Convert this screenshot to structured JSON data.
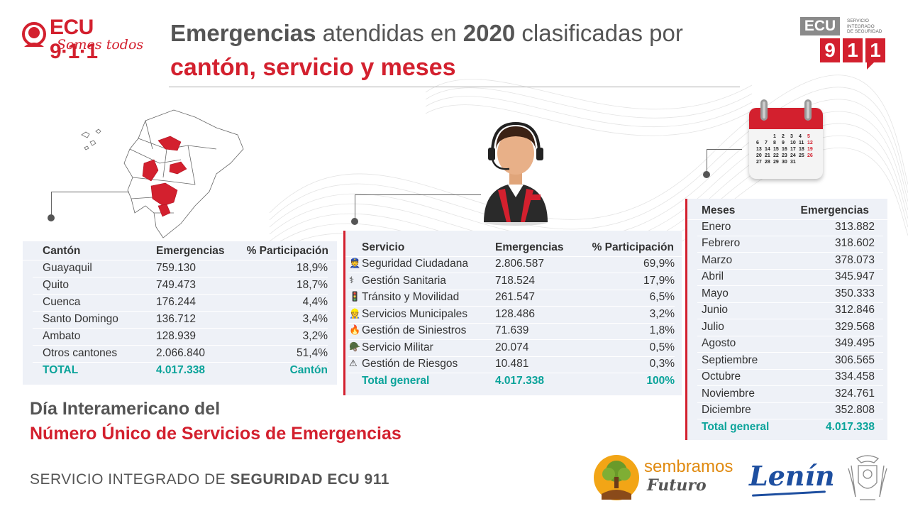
{
  "header": {
    "logo_brand": "ECU 9·1·1",
    "logo_slogan": "Somos todos",
    "title_part1": "Emergencias",
    "title_part2": " atendidas en ",
    "title_part3": "2020",
    "title_part4": " clasificadas por",
    "subtitle": "cantón, servicio y meses",
    "right_logo_top": "ECU",
    "right_logo_lines": [
      "SERVICIO",
      "INTEGRADO",
      "DE SEGURIDAD"
    ],
    "right_logo_digits": [
      "9",
      "1",
      "1"
    ]
  },
  "canton": {
    "headers": [
      "Cantón",
      "Emergencias",
      "% Participación"
    ],
    "rows": [
      [
        "Guayaquil",
        "759.130",
        "18,9%"
      ],
      [
        "Quito",
        "749.473",
        "18,7%"
      ],
      [
        "Cuenca",
        "176.244",
        "4,4%"
      ],
      [
        "Santo Domingo",
        "136.712",
        "3,4%"
      ],
      [
        "Ambato",
        "128.939",
        "3,2%"
      ],
      [
        "Otros cantones",
        "2.066.840",
        "51,4%"
      ]
    ],
    "total": [
      "TOTAL",
      "4.017.338",
      "Cantón"
    ]
  },
  "servicio": {
    "headers": [
      "Servicio",
      "Emergencias",
      "% Participación"
    ],
    "rows": [
      [
        "Seguridad Ciudadana",
        "2.806.587",
        "69,9%"
      ],
      [
        "Gestión Sanitaria",
        "718.524",
        "17,9%"
      ],
      [
        "Tránsito y Movilidad",
        "261.547",
        "6,5%"
      ],
      [
        "Servicios Municipales",
        "128.486",
        "3,2%"
      ],
      [
        "Gestión de Siniestros",
        "71.639",
        "1,8%"
      ],
      [
        "Servicio Militar",
        "20.074",
        "0,5%"
      ],
      [
        "Gestión de Riesgos",
        "10.481",
        "0,3%"
      ]
    ],
    "icons": [
      "police-icon",
      "medic-icon",
      "traffic-officer-icon",
      "municipal-worker-icon",
      "firefighter-icon",
      "soldier-icon",
      "risk-worker-icon"
    ],
    "total": [
      "Total general",
      "4.017.338",
      "100%"
    ]
  },
  "meses": {
    "headers": [
      "Meses",
      "Emergencias"
    ],
    "rows": [
      [
        "Enero",
        "313.882"
      ],
      [
        "Febrero",
        "318.602"
      ],
      [
        "Marzo",
        "378.073"
      ],
      [
        "Abril",
        "345.947"
      ],
      [
        "Mayo",
        "350.333"
      ],
      [
        "Junio",
        "312.846"
      ],
      [
        "Julio",
        "329.568"
      ],
      [
        "Agosto",
        "349.495"
      ],
      [
        "Septiembre",
        "306.565"
      ],
      [
        "Octubre",
        "334.458"
      ],
      [
        "Noviembre",
        "324.761"
      ],
      [
        "Diciembre",
        "352.808"
      ]
    ],
    "total": [
      "Total general",
      "4.017.338"
    ]
  },
  "calendar": {
    "rows": [
      [
        "",
        "",
        "1",
        "2",
        "3",
        "4",
        "5"
      ],
      [
        "6",
        "7",
        "8",
        "9",
        "10",
        "11",
        "12"
      ],
      [
        "13",
        "14",
        "15",
        "16",
        "17",
        "18",
        "19"
      ],
      [
        "20",
        "21",
        "22",
        "23",
        "24",
        "25",
        "26"
      ],
      [
        "27",
        "28",
        "29",
        "30",
        "31",
        "",
        ""
      ]
    ]
  },
  "footer": {
    "day_line1": "Día Interamericano del",
    "day_line2": "Número Único de Servicios de Emergencias",
    "org_prefix": "SERVICIO INTEGRADO DE ",
    "org_bold": "SEGURIDAD ECU 911",
    "logo_sembramos": "sembramos",
    "logo_futuro": "Futuro",
    "logo_lenin": "Lenín"
  },
  "colors": {
    "brand_red": "#d3202e",
    "total_teal": "#0aa39a",
    "panel_bg": "#eef1f7",
    "text_gray": "#555555"
  }
}
